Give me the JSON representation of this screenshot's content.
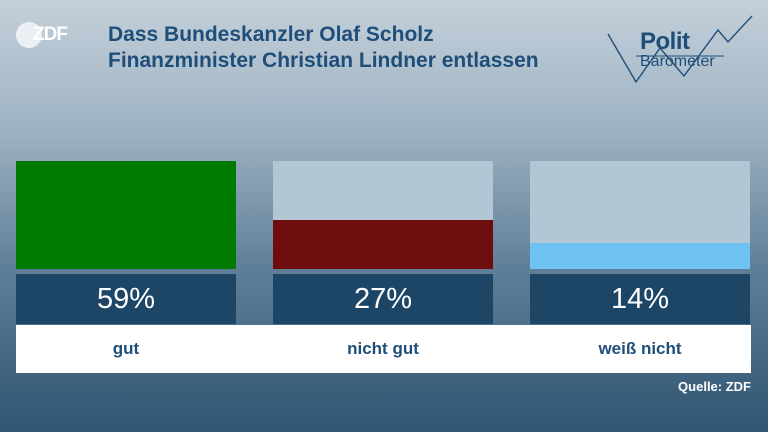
{
  "header": {
    "logo_text": "ZDF",
    "title_line1": "Dass Bundeskanzler Olaf Scholz",
    "title_line2": "Finanzminister Christian Lindner entlassen",
    "brand_line1": "Polit",
    "brand_line2": "Barometer"
  },
  "chart_data": {
    "type": "bar",
    "categories": [
      "gut",
      "nicht gut",
      "weiß nicht"
    ],
    "values": [
      59,
      27,
      14
    ],
    "value_labels": [
      "59%",
      "27%",
      "14%"
    ],
    "colors": [
      "#007a00",
      "#6e0d0d",
      "#6ec3f2"
    ],
    "ylim": [
      0,
      59
    ],
    "title": "Dass Bundeskanzler Olaf Scholz Finanzminister Christian Lindner entlassen",
    "xlabel": "",
    "ylabel": ""
  },
  "footer": {
    "source": "Quelle: ZDF"
  },
  "colors": {
    "accent": "#1f4e79",
    "value_box": "#1d4566",
    "bar_track": "#b2c7d4"
  }
}
